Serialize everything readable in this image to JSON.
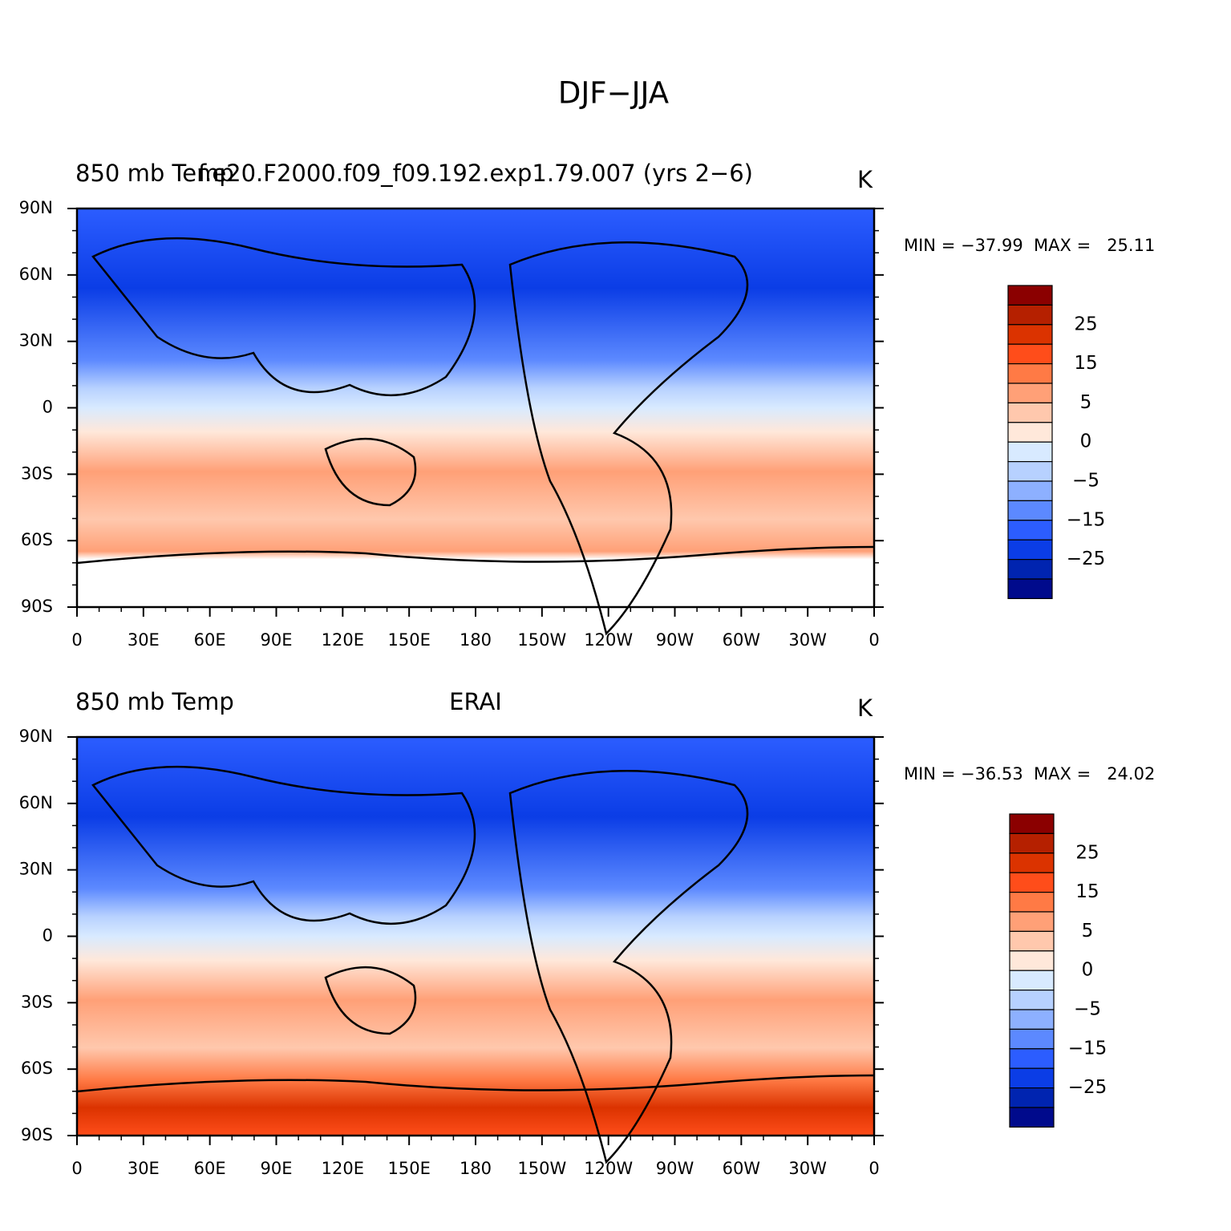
{
  "title": "DJF−JJA",
  "panels": [
    {
      "left_title": "850 mb Temp",
      "center_title": "f.e20.F2000.f09_f09.192.exp1.79.007 (yrs 2−6)",
      "right_title": "K",
      "stats": "MIN = −37.99  MAX =   25.11"
    },
    {
      "left_title": "850 mb Temp",
      "center_title": "ERAI",
      "right_title": "K",
      "stats": "MIN = −36.53  MAX =   24.02"
    }
  ],
  "lat_labels": [
    "90N",
    "60N",
    "30N",
    "0",
    "30S",
    "60S",
    "90S"
  ],
  "lon_labels": [
    "0",
    "30E",
    "60E",
    "90E",
    "120E",
    "150E",
    "180",
    "150W",
    "120W",
    "90W",
    "60W",
    "30W",
    "0"
  ],
  "colorbar": {
    "colors": [
      "#8b0000",
      "#b52000",
      "#db3300",
      "#ff4d1a",
      "#ff7a45",
      "#ffa077",
      "#ffc8ad",
      "#ffe8da",
      "#d8eaff",
      "#b7d1ff",
      "#8db0ff",
      "#5c89ff",
      "#2c5dff",
      "#0b3de6",
      "#0024b0",
      "#000a8c"
    ],
    "labels": [
      "25",
      "15",
      "5",
      "0",
      "−5",
      "−15",
      "−25"
    ]
  }
}
